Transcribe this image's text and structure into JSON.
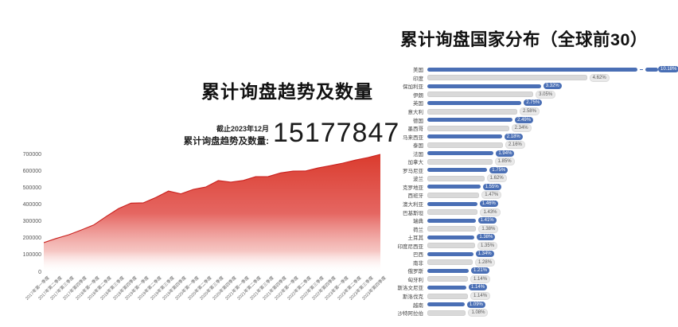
{
  "left_chart": {
    "title": "累计询盘趋势及数量",
    "as_of": "截止2023年12月",
    "total_label": "累计询盘趋势及数量:",
    "total_value": "15177847"
  },
  "right_chart": {
    "title": "累计询盘国家分布（全球前30）"
  },
  "colors": {
    "bar_blue": "#4a6fb5",
    "bar_gray": "#d9d9d9",
    "badge_gray_bg": "#e9e9e9",
    "badge_gray_text": "#595959",
    "area_red_top": "#d93527",
    "area_red_mid": "#e25550",
    "area_stroke": "#c9211e"
  },
  "chart_data": [
    {
      "type": "area",
      "title": "累计询盘趋势及数量",
      "xlabel": "",
      "ylabel": "",
      "ylim": [
        0,
        700000
      ],
      "yticks": [
        0,
        100000,
        200000,
        300000,
        400000,
        500000,
        600000,
        700000
      ],
      "grid": false,
      "x": [
        "2017年第一季度",
        "2017年第二季度",
        "2017年第三季度",
        "2017年第四季度",
        "2018年第一季度",
        "2018年第二季度",
        "2018年第三季度",
        "2018年第四季度",
        "2019年第一季度",
        "2019年第二季度",
        "2019年第三季度",
        "2019年第四季度",
        "2020年第一季度",
        "2020年第二季度",
        "2020年第三季度",
        "2020年第四季度",
        "2021年第一季度",
        "2021年第二季度",
        "2021年第三季度",
        "2021年第四季度",
        "2022年第一季度",
        "2022年第二季度",
        "2022年第三季度",
        "2022年第四季度",
        "2023年第一季度",
        "2023年第二季度",
        "2023年第三季度",
        "2023年第四季度"
      ],
      "values": [
        175000,
        200000,
        222000,
        250000,
        280000,
        330000,
        378000,
        410000,
        412000,
        444000,
        482000,
        465000,
        492000,
        506000,
        544000,
        535000,
        545000,
        567000,
        568000,
        590000,
        600000,
        601000,
        619000,
        633000,
        648000,
        666000,
        681000,
        700000
      ]
    },
    {
      "type": "bar",
      "orientation": "horizontal",
      "title": "累计询盘国家分布（全球前30）",
      "unit": "%",
      "broken_axis_first_bar": true,
      "categories": [
        "美国",
        "印度",
        "保加利亚",
        "伊朗",
        "英国",
        "意大利",
        "德国",
        "墨西哥",
        "马来西亚",
        "泰国",
        "法国",
        "加拿大",
        "罗马尼亚",
        "波兰",
        "克罗地亚",
        "西班牙",
        "澳大利亚",
        "巴基斯坦",
        "瑞典",
        "荷兰",
        "土耳其",
        "印度尼西亚",
        "巴西",
        "南非",
        "俄罗斯",
        "匈牙利",
        "斯洛文尼亚",
        "斯洛伐克",
        "越南",
        "沙特阿拉伯"
      ],
      "values": [
        10.18,
        4.62,
        3.32,
        3.05,
        2.75,
        2.58,
        2.49,
        2.34,
        2.18,
        2.16,
        1.94,
        1.85,
        1.75,
        1.62,
        1.55,
        1.47,
        1.46,
        1.43,
        1.41,
        1.38,
        1.38,
        1.35,
        1.34,
        1.28,
        1.21,
        1.14,
        1.14,
        1.14,
        1.09,
        1.08
      ],
      "value_labels": [
        "10.18%",
        "4.62%",
        "3.32%",
        "3.05%",
        "2.75%",
        "2.58%",
        "2.49%",
        "2.34%",
        "2.18%",
        "2.16%",
        "1.94%",
        "1.85%",
        "1.75%",
        "1.62%",
        "1.55%",
        "1.47%",
        "1.46%",
        "1.43%",
        "1.41%",
        "1.38%",
        "1.38%",
        "1.35%",
        "1.34%",
        "1.28%",
        "1.21%",
        "1.14%",
        "1.14%",
        "1.14%",
        "1.09%",
        "1.08%"
      ]
    }
  ]
}
